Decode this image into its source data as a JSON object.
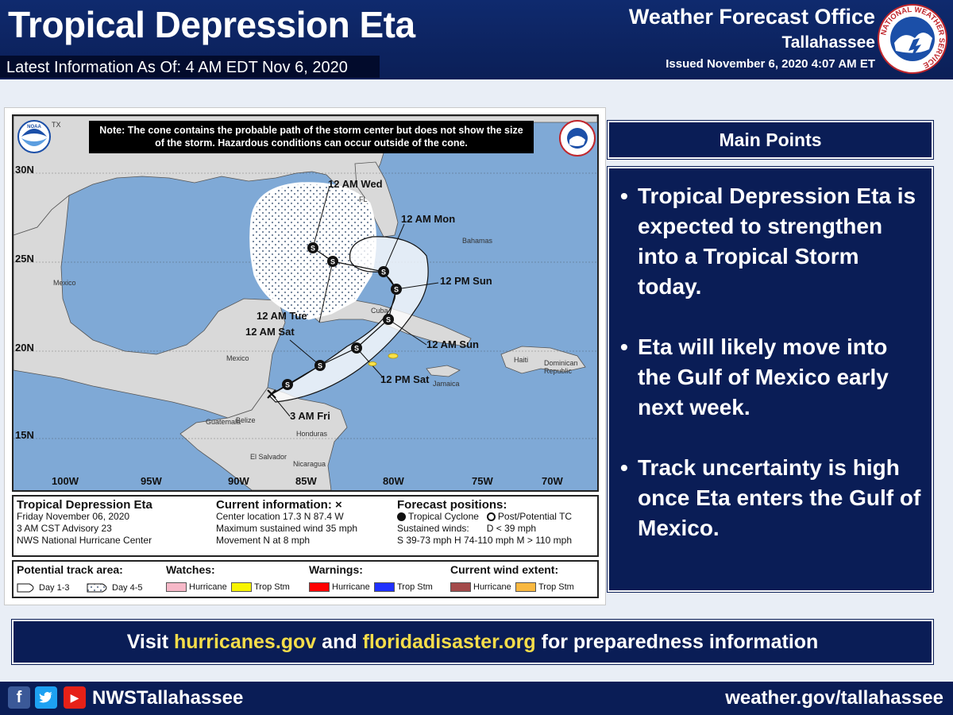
{
  "header": {
    "title": "Tropical Depression Eta",
    "latest": "Latest Information As Of: 4 AM EDT Nov 6, 2020",
    "office": "Weather Forecast Office",
    "office_sub": "Tallahassee",
    "issued": "Issued November 6, 2020 4:07 AM ET",
    "logo_ring_text": "NATIONAL WEATHER SERVICE"
  },
  "map": {
    "note": "Note: The cone contains the probable path of the storm center but does not show the size of the storm. Hazardous conditions can occur outside of the cone.",
    "noaa_label": "NOAA",
    "latitudes": [
      "30N",
      "25N",
      "20N",
      "15N"
    ],
    "longitudes": [
      "100W",
      "95W",
      "90W",
      "85W",
      "80W",
      "75W",
      "70W"
    ],
    "places": {
      "tx": "TX",
      "fl": "FL",
      "mexico_north": "Mexico",
      "mexico_south": "Mexico",
      "belize": "Belize",
      "guatemala": "Guatemala",
      "honduras": "Honduras",
      "el_salvador": "El Salvador",
      "nicaragua": "Nicaragua",
      "cuba": "Cuba",
      "bahamas": "Bahamas",
      "jamaica": "Jamaica",
      "haiti": "Haiti",
      "dominican": "Dominican Republic"
    },
    "track_labels": {
      "wed": "12 AM Wed",
      "mon": "12 AM Mon",
      "sun_pm": "12 PM Sun",
      "tue": "12 AM Tue",
      "sat_am": "12 AM Sat",
      "sun_am": "12 AM Sun",
      "sat_pm": "12 PM Sat",
      "fri": "3 AM Fri"
    },
    "point_marker": "S"
  },
  "info": {
    "storm_name": "Tropical Depression Eta",
    "date": "Friday November 06, 2020",
    "advisory": "3 AM CST Advisory 23",
    "center": "NWS National Hurricane Center",
    "current_head": "Current information: ×",
    "location": "Center location 17.3 N 87.4 W",
    "wind": "Maximum sustained wind 35 mph",
    "movement": "Movement N at 8 mph",
    "forecast_head": "Forecast positions:",
    "tc": "Tropical Cyclone",
    "post": "Post/Potential TC",
    "sustained": "Sustained winds:",
    "d": "D < 39 mph",
    "categories": "S 39-73 mph  H 74-110 mph  M > 110 mph"
  },
  "legend": {
    "track_head": "Potential track area:",
    "day13": "Day 1-3",
    "day45": "Day 4-5",
    "watches_head": "Watches:",
    "warnings_head": "Warnings:",
    "wind_head": "Current wind extent:",
    "hurricane": "Hurricane",
    "tropstm": "Trop Stm",
    "colors": {
      "watch_hurricane": "#f6b8c8",
      "watch_trop": "#f8f400",
      "warn_hurricane": "#ff0000",
      "warn_trop": "#1f31ff",
      "wind_hurricane": "#a34a4a",
      "wind_trop": "#f9b840"
    }
  },
  "main_points": {
    "heading": "Main Points",
    "items": [
      "Tropical Depression Eta is expected to strengthen into a Tropical Storm today.",
      "Eta will likely move into the Gulf of Mexico early next week.",
      "Track uncertainty is high once Eta enters the Gulf of Mexico."
    ]
  },
  "visit": {
    "prefix": "Visit ",
    "link1": "hurricanes.gov",
    "mid": " and ",
    "link2": "floridadisaster.org",
    "suffix": " for preparedness information"
  },
  "footer": {
    "handle": "NWSTallahassee",
    "website": "weather.gov/tallahassee",
    "icons": [
      "facebook-icon",
      "twitter-icon",
      "youtube-icon"
    ]
  }
}
